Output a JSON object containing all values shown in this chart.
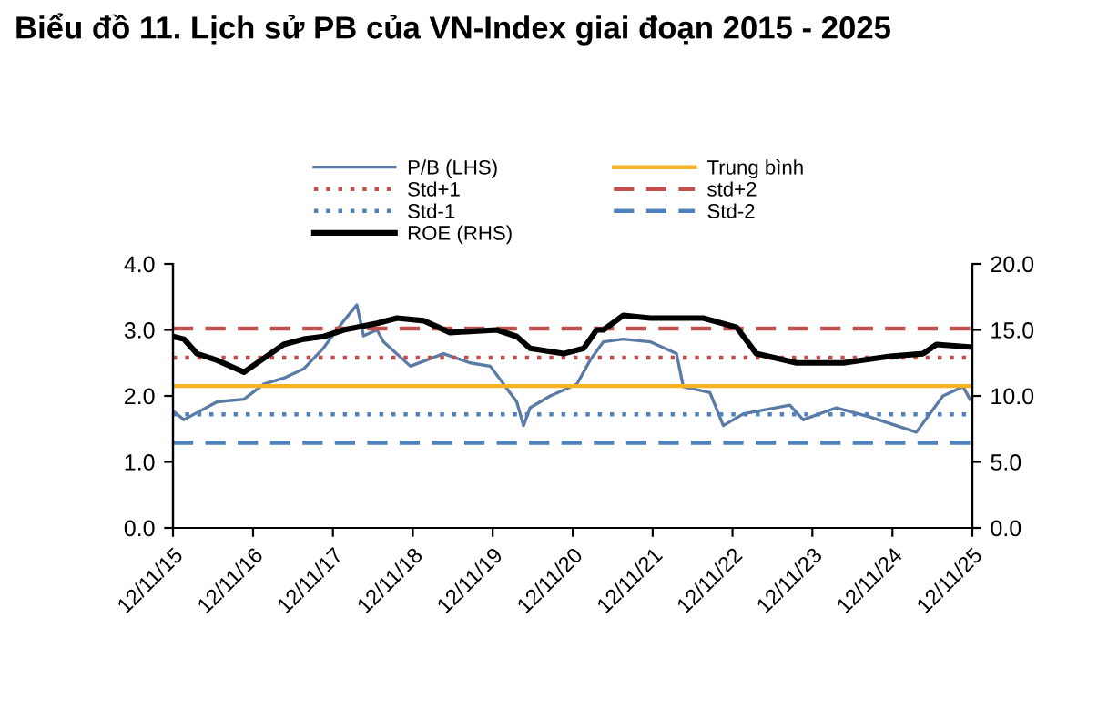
{
  "chart_data": {
    "type": "line",
    "title": "Biểu đồ 11. Lịch sử PB của VN-Index giai đoạn 2015 - 2025",
    "series": [
      {
        "name": "P/B (LHS)",
        "color": "#5b7ba6",
        "x": [
          "2015-11-12",
          "2016-01",
          "2016-06",
          "2016-10",
          "2017-01",
          "2017-04",
          "2017-07",
          "2017-10",
          "2018-01",
          "2018-03",
          "2018-04",
          "2018-06",
          "2018-07",
          "2018-11",
          "2019-04",
          "2019-08",
          "2019-11",
          "2020-01",
          "2020-03",
          "2020-04",
          "2020-05",
          "2020-08",
          "2020-12",
          "2021-02",
          "2021-04",
          "2021-07",
          "2021-11",
          "2022-03",
          "2022-04",
          "2022-08",
          "2022-10",
          "2023-01",
          "2023-08",
          "2023-10",
          "2024-03",
          "2024-08",
          "2025-03",
          "2025-07",
          "2025-10",
          "2025-11"
        ],
        "values": [
          1.77,
          1.64,
          1.91,
          1.95,
          2.18,
          2.27,
          2.41,
          2.73,
          3.14,
          3.38,
          2.91,
          3.0,
          2.82,
          2.45,
          2.64,
          2.5,
          2.45,
          2.18,
          1.91,
          1.55,
          1.82,
          2.0,
          2.18,
          2.55,
          2.82,
          2.86,
          2.82,
          2.64,
          2.14,
          2.05,
          1.55,
          1.73,
          1.86,
          1.64,
          1.82,
          1.68,
          1.45,
          2.0,
          2.14,
          1.95
        ]
      },
      {
        "name": "Trung bình",
        "color": "#f5b323",
        "x": [
          "2015-11-12",
          "2025-11-12"
        ],
        "values": [
          2.15,
          2.15
        ]
      },
      {
        "name": "Std+1",
        "color": "#c0504d",
        "line_style": "dotted",
        "x": [
          "2015-11-12",
          "2025-11-12"
        ],
        "values": [
          2.58,
          2.58
        ]
      },
      {
        "name": "std+2",
        "color": "#c0504d",
        "line_style": "dashed",
        "x": [
          "2015-11-12",
          "2025-11-12"
        ],
        "values": [
          3.02,
          3.02
        ]
      },
      {
        "name": "Std-1",
        "color": "#4f81bd",
        "line_style": "dotted",
        "x": [
          "2015-11-12",
          "2025-11-12"
        ],
        "values": [
          1.72,
          1.72
        ]
      },
      {
        "name": "Std-2",
        "color": "#4f81bd",
        "line_style": "dashed",
        "x": [
          "2015-11-12",
          "2025-11-12"
        ],
        "values": [
          1.29,
          1.29
        ]
      },
      {
        "name": "ROE (RHS)",
        "color": "#000000",
        "axis": "y2",
        "x": [
          "2015-11-12",
          "2016-01",
          "2016-03",
          "2016-06",
          "2016-10",
          "2016-12",
          "2017-04",
          "2017-07",
          "2017-10",
          "2018-01",
          "2018-06",
          "2018-09",
          "2019-01",
          "2019-05",
          "2019-12",
          "2020-03",
          "2020-05",
          "2020-10",
          "2021-01",
          "2021-03",
          "2021-04",
          "2021-07",
          "2021-11",
          "2022-07",
          "2022-12",
          "2023-03",
          "2023-09",
          "2024-04",
          "2024-11",
          "2025-04",
          "2025-06",
          "2025-11"
        ],
        "values": [
          14.5,
          14.3,
          13.2,
          12.7,
          11.8,
          12.5,
          13.9,
          14.3,
          14.5,
          15.0,
          15.5,
          15.9,
          15.7,
          14.8,
          15.0,
          14.5,
          13.6,
          13.2,
          13.6,
          15.0,
          15.0,
          16.1,
          15.9,
          15.9,
          15.2,
          13.2,
          12.5,
          12.5,
          13.0,
          13.2,
          13.9,
          13.7
        ]
      }
    ],
    "xlim": [
      "2015-11-12",
      "2025-11-12"
    ],
    "xticks": [
      {
        "value": "2015-11-12",
        "label": "12/11/15"
      },
      {
        "value": "2016-11-12",
        "label": "12/11/16"
      },
      {
        "value": "2017-11-12",
        "label": "12/11/17"
      },
      {
        "value": "2018-11-12",
        "label": "12/11/18"
      },
      {
        "value": "2019-11-12",
        "label": "12/11/19"
      },
      {
        "value": "2020-11-12",
        "label": "12/11/20"
      },
      {
        "value": "2021-11-12",
        "label": "12/11/21"
      },
      {
        "value": "2022-11-12",
        "label": "12/11/22"
      },
      {
        "value": "2023-11-12",
        "label": "12/11/23"
      },
      {
        "value": "2024-11-12",
        "label": "12/11/24"
      },
      {
        "value": "2025-11-12",
        "label": "12/11/25"
      }
    ],
    "ylim": [
      0,
      4
    ],
    "yticks": [
      {
        "value": 0,
        "label": "0.0"
      },
      {
        "value": 1,
        "label": "1.0"
      },
      {
        "value": 2,
        "label": "2.0"
      },
      {
        "value": 3,
        "label": "3.0"
      },
      {
        "value": 4,
        "label": "4.0"
      }
    ],
    "y2lim": [
      0,
      20
    ],
    "y2ticks": [
      {
        "value": 0,
        "label": "0.0"
      },
      {
        "value": 5,
        "label": "5.0"
      },
      {
        "value": 10,
        "label": "10.0"
      },
      {
        "value": 15,
        "label": "15.0"
      },
      {
        "value": 20,
        "label": "20.0"
      }
    ],
    "grid": false,
    "legend": "top"
  }
}
